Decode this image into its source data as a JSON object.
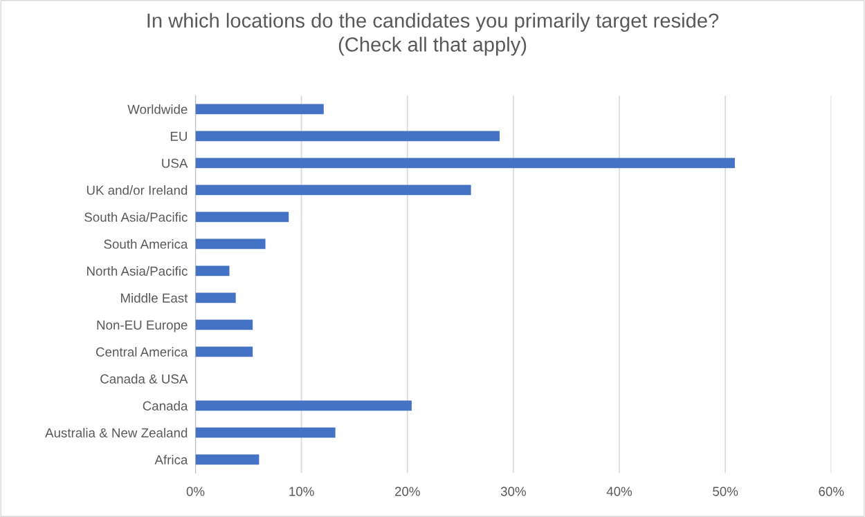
{
  "chart_data": {
    "type": "bar",
    "orientation": "horizontal",
    "title": "In which locations do the candidates you primarily target reside?\n(Check all that apply)",
    "categories": [
      "Worldwide",
      "EU",
      "USA",
      "UK and/or Ireland",
      "South Asia/Pacific",
      "South America",
      "North Asia/Pacific",
      "Middle East",
      "Non-EU Europe",
      "Central America",
      "Canada & USA",
      "Canada",
      "Australia & New Zealand",
      "Africa"
    ],
    "values": [
      12.1,
      28.7,
      50.9,
      26.0,
      8.8,
      6.6,
      3.2,
      3.8,
      5.4,
      5.4,
      0,
      20.4,
      13.2,
      6.0
    ],
    "color": "#4472c4",
    "xlim": [
      0,
      60
    ],
    "xticks": [
      {
        "value": 0,
        "label": "0%"
      },
      {
        "value": 10,
        "label": "10%"
      },
      {
        "value": 20,
        "label": "20%"
      },
      {
        "value": 30,
        "label": "30%"
      },
      {
        "value": 40,
        "label": "40%"
      },
      {
        "value": 50,
        "label": "50%"
      },
      {
        "value": 60,
        "label": "60%"
      }
    ],
    "grid": "x"
  }
}
